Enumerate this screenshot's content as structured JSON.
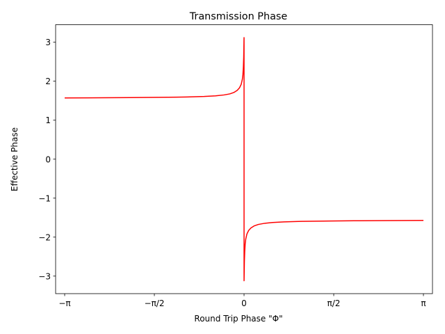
{
  "chart_data": {
    "type": "line",
    "title": "Transmission Phase",
    "xlabel": "Round Trip Phase \"Φ\"",
    "ylabel": "Effective Phase",
    "xlim": [
      -3.3,
      3.3
    ],
    "ylim": [
      -3.45,
      3.45
    ],
    "grid": false,
    "x_ticks": [
      {
        "value": -3.14159,
        "label": "−π"
      },
      {
        "value": -1.5708,
        "label": "−π/2"
      },
      {
        "value": 0,
        "label": "0"
      },
      {
        "value": 1.5708,
        "label": "π/2"
      },
      {
        "value": 3.14159,
        "label": "π"
      }
    ],
    "y_ticks": [
      {
        "value": -3,
        "label": "−3"
      },
      {
        "value": -2,
        "label": "−2"
      },
      {
        "value": -1,
        "label": "−1"
      },
      {
        "value": 0,
        "label": "0"
      },
      {
        "value": 1,
        "label": "1"
      },
      {
        "value": 2,
        "label": "2"
      },
      {
        "value": 3,
        "label": "3"
      }
    ],
    "series": [
      {
        "color": "#ff0000",
        "x": [
          -3.14159,
          -2.5,
          -2.0,
          -1.5,
          -1.0,
          -0.7,
          -0.5,
          -0.35,
          -0.25,
          -0.18,
          -0.12,
          -0.08,
          -0.05,
          -0.03,
          -0.02,
          -0.012,
          -0.006,
          -0.003,
          -0.001,
          0.0,
          0.0,
          0.001,
          0.003,
          0.006,
          0.012,
          0.02,
          0.03,
          0.05,
          0.08,
          0.12,
          0.18,
          0.25,
          0.35,
          0.5,
          0.7,
          1.0,
          1.5,
          2.0,
          2.5,
          3.14159
        ],
        "y": [
          1.571,
          1.575,
          1.58,
          1.586,
          1.595,
          1.608,
          1.624,
          1.648,
          1.675,
          1.71,
          1.765,
          1.83,
          1.92,
          2.05,
          2.17,
          2.36,
          2.62,
          2.88,
          3.08,
          3.12,
          -3.12,
          -3.08,
          -2.88,
          -2.62,
          -2.36,
          -2.17,
          -2.05,
          -1.92,
          -1.83,
          -1.765,
          -1.71,
          -1.675,
          -1.648,
          -1.624,
          -1.608,
          -1.595,
          -1.586,
          -1.58,
          -1.575,
          -1.571
        ]
      }
    ]
  }
}
